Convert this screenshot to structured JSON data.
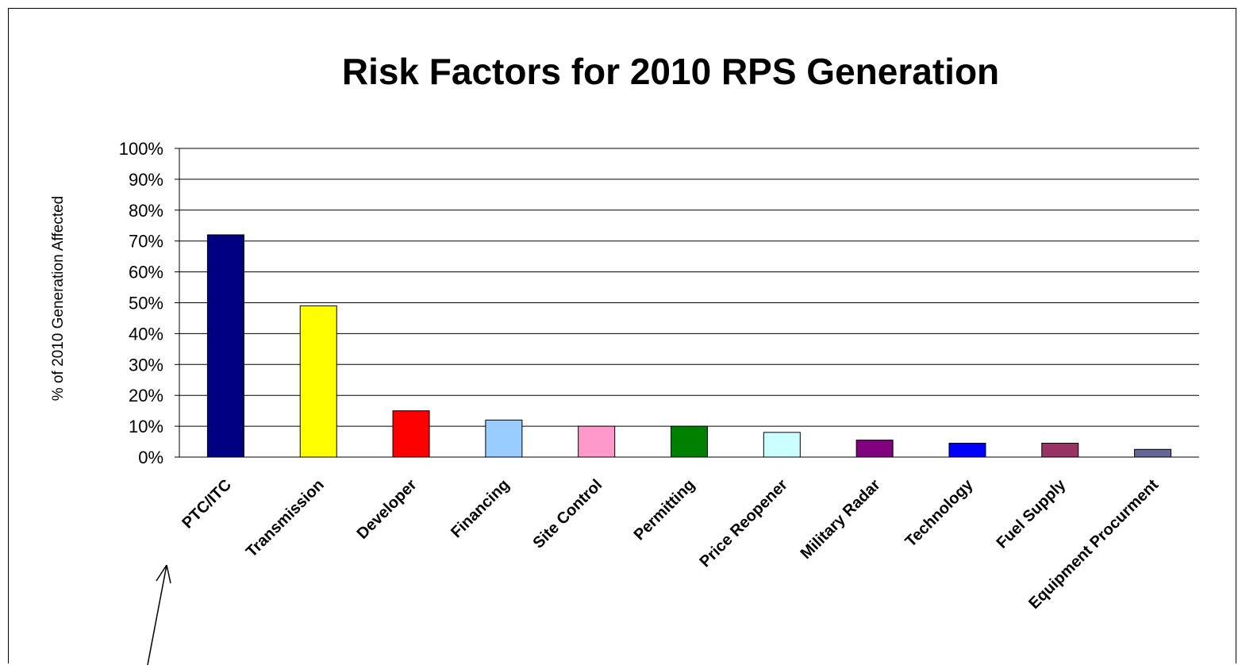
{
  "chart_data": {
    "type": "bar",
    "title": "Risk Factors for 2010 RPS Generation",
    "ylabel": "% of 2010 Generation Affected",
    "xlabel": "",
    "ylim": [
      0,
      100
    ],
    "y_ticks": [
      "0%",
      "10%",
      "20%",
      "30%",
      "40%",
      "50%",
      "60%",
      "70%",
      "80%",
      "90%",
      "100%"
    ],
    "y_tick_values": [
      0,
      10,
      20,
      30,
      40,
      50,
      60,
      70,
      80,
      90,
      100
    ],
    "grid": true,
    "legend": "none",
    "categories": [
      "PTC/ITC",
      "Transmission",
      "Developer",
      "Financing",
      "Site Control",
      "Permitting",
      "Price Reopener",
      "Military Radar",
      "Technology",
      "Fuel Supply",
      "Equipment Procurment"
    ],
    "values": [
      72,
      49,
      15,
      12,
      10,
      10,
      8,
      5.5,
      4.5,
      4.5,
      2.5
    ],
    "colors": [
      "#000080",
      "#FFFF00",
      "#FF0000",
      "#99CCFF",
      "#FF99CC",
      "#008000",
      "#CCFFFF",
      "#800080",
      "#0000FF",
      "#993366",
      "#666699"
    ]
  }
}
